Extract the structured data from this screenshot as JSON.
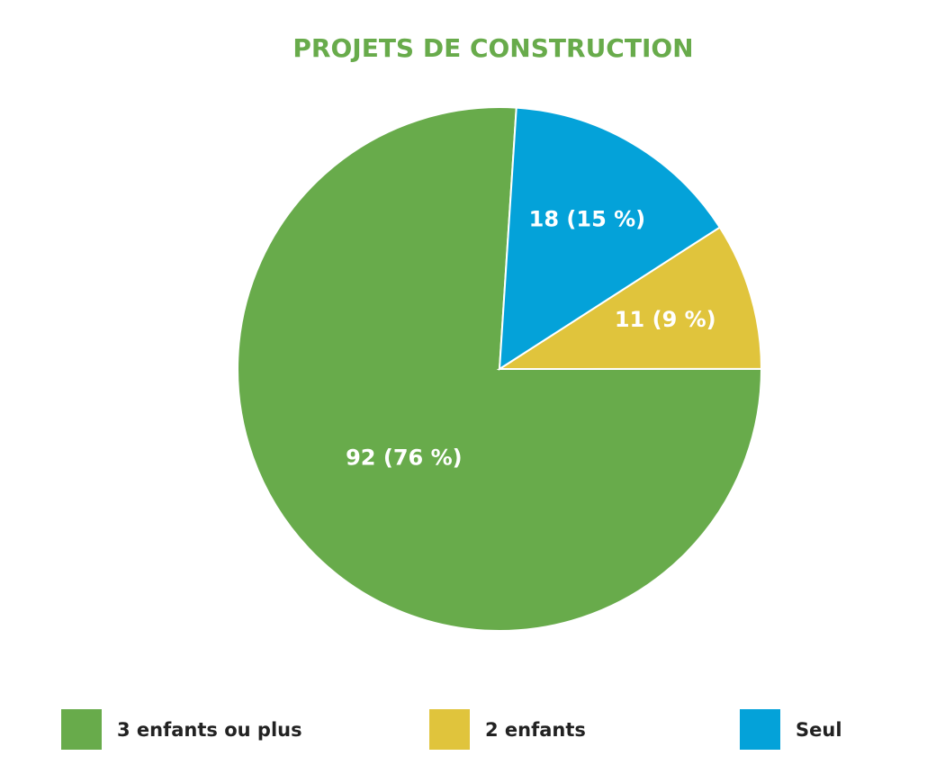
{
  "chart_data": {
    "type": "pie",
    "title": "PROJETS DE CONSTRUCTION",
    "categories": [
      "3 enfants ou plus",
      "2 enfants",
      "Seul"
    ],
    "values": [
      92,
      11,
      18
    ],
    "value_labels": [
      "92 (76 %)",
      "11 (9 %)",
      "18 (15 %)"
    ],
    "colors": [
      "#68ab4b",
      "#e0c43c",
      "#04a2d9"
    ],
    "legend": "bottom"
  }
}
